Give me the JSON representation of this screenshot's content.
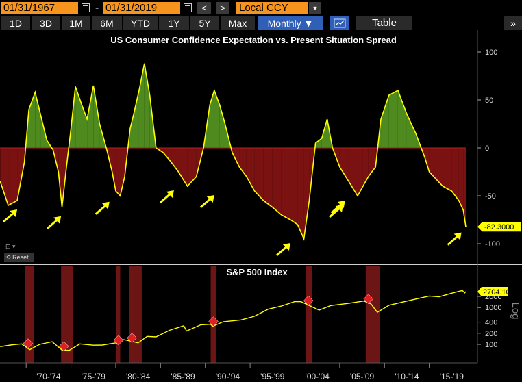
{
  "toolbar": {
    "start_date": "01/31/1967",
    "end_date": "01/31/2019",
    "date_separator": "-",
    "currency": "Local CCY",
    "prev_label": "<",
    "next_label": ">",
    "timeframes": [
      "1D",
      "3D",
      "1M",
      "6M",
      "YTD",
      "1Y",
      "5Y",
      "Max"
    ],
    "period": "Monthly ▼",
    "table_label": "Table",
    "more_label": "»",
    "reset_label": "Reset"
  },
  "colors": {
    "accent_orange": "#f7941d",
    "line_yellow": "#ffff00",
    "positive_fill": "#4e8a1e",
    "negative_fill": "#7a1212",
    "recession_band": "#6b1515",
    "active_blue": "#2f5fb6"
  },
  "icons": [
    "calendar-icon",
    "chevron-left-icon",
    "chevron-right-icon",
    "dropdown-icon",
    "line-chart-icon",
    "double-chevron-right-icon",
    "reset-icon"
  ],
  "chart_data": [
    {
      "type": "area",
      "title": "US Consumer Confidence Expectation vs. Present Situation Spread",
      "xlabel": "",
      "ylabel": "",
      "ylim": [
        -125,
        105
      ],
      "yticks": [
        100,
        50,
        0,
        -50,
        -100
      ],
      "x_start": 1967.08,
      "x_end": 2019.08,
      "grid": false,
      "last_value_label": "-82.3000",
      "series": [
        {
          "x": [
            1967.1,
            1968.0,
            1969.0,
            1969.8,
            1970.3,
            1971.0,
            1971.6,
            1972.3,
            1973.0,
            1973.6,
            1974.0,
            1974.5,
            1975.0,
            1975.5,
            1976.2,
            1976.8,
            1977.5,
            1978.2,
            1979.0,
            1979.6,
            1980.0,
            1980.5,
            1981.0,
            1981.6,
            1982.0,
            1982.6,
            1983.2,
            1983.8,
            1984.5,
            1985.3,
            1986.2,
            1987.0,
            1988.0,
            1989.0,
            1989.8,
            1990.5,
            1991.0,
            1991.6,
            1992.2,
            1993.0,
            1993.8,
            1994.6,
            1995.5,
            1996.5,
            1997.5,
            1998.5,
            1999.5,
            2000.3,
            2001.0,
            2001.6,
            2002.3,
            2003.0,
            2003.6,
            2004.2,
            2005.0,
            2006.0,
            2007.0,
            2007.6,
            2008.2,
            2009.0,
            2009.6,
            2010.5,
            2011.5,
            2012.5,
            2013.5,
            2014.5,
            2015.0,
            2015.5,
            2016.5,
            2017.5,
            2018.3,
            2018.8,
            2019.08
          ],
          "values": [
            -35,
            -60,
            -55,
            -15,
            40,
            58,
            35,
            8,
            -2,
            -25,
            -62,
            -20,
            20,
            64,
            45,
            30,
            65,
            25,
            -2,
            -25,
            -45,
            -50,
            -30,
            20,
            35,
            60,
            88,
            55,
            0,
            -5,
            -15,
            -25,
            -40,
            -30,
            0,
            45,
            60,
            45,
            25,
            -5,
            -20,
            -30,
            -45,
            -55,
            -62,
            -70,
            -75,
            -80,
            -95,
            -55,
            5,
            10,
            30,
            0,
            -20,
            -35,
            -50,
            -40,
            -30,
            -20,
            30,
            55,
            60,
            35,
            15,
            -10,
            -25,
            -30,
            -40,
            -45,
            -55,
            -65,
            -82.3
          ]
        }
      ]
    },
    {
      "type": "line",
      "title": "S&P 500 Index",
      "ylabel": "Log",
      "scale": "log",
      "ylim": [
        50,
        3500
      ],
      "yticks": [
        100,
        200,
        400,
        1000,
        2000
      ],
      "x_categories": [
        "'70-'74",
        "'75-'79",
        "'80-'84",
        "'85-'89",
        "'90-'94",
        "'95-'99",
        "'00-'04",
        "'05-'09",
        "'10-'14",
        "'15-'19"
      ],
      "last_value_label": "2704.10",
      "series": [
        {
          "name": "S&P 500 Index",
          "x": [
            1967.1,
            1968.5,
            1969.5,
            1970.4,
            1971.5,
            1972.9,
            1974.0,
            1974.8,
            1976.0,
            1977.5,
            1978.5,
            1980.0,
            1980.2,
            1980.9,
            1982.5,
            1983.5,
            1984.5,
            1986.0,
            1987.6,
            1987.9,
            1989.5,
            1990.6,
            1990.8,
            1992.0,
            1994.0,
            1995.5,
            1997.0,
            1998.5,
            2000.0,
            2000.7,
            2002.7,
            2004.0,
            2006.0,
            2007.7,
            2008.5,
            2009.2,
            2010.5,
            2012.0,
            2013.5,
            2015.0,
            2016.1,
            2017.5,
            2018.7,
            2018.95,
            2019.08
          ],
          "values": [
            87,
            98,
            103,
            72,
            100,
            118,
            70,
            69,
            103,
            95,
            96,
            110,
            102,
            135,
            110,
            165,
            160,
            240,
            320,
            230,
            340,
            350,
            310,
            410,
            460,
            580,
            900,
            1100,
            1450,
            1440,
            850,
            1130,
            1300,
            1500,
            1250,
            740,
            1150,
            1400,
            1700,
            2050,
            1950,
            2450,
            2900,
            2500,
            2704.1
          ]
        }
      ],
      "recessions": [
        [
          1969.9,
          1970.9
        ],
        [
          1973.9,
          1975.2
        ],
        [
          1980.0,
          1980.5
        ],
        [
          1981.5,
          1982.9
        ],
        [
          1990.6,
          1991.2
        ],
        [
          2001.2,
          2001.9
        ],
        [
          2007.9,
          2009.5
        ]
      ]
    }
  ]
}
